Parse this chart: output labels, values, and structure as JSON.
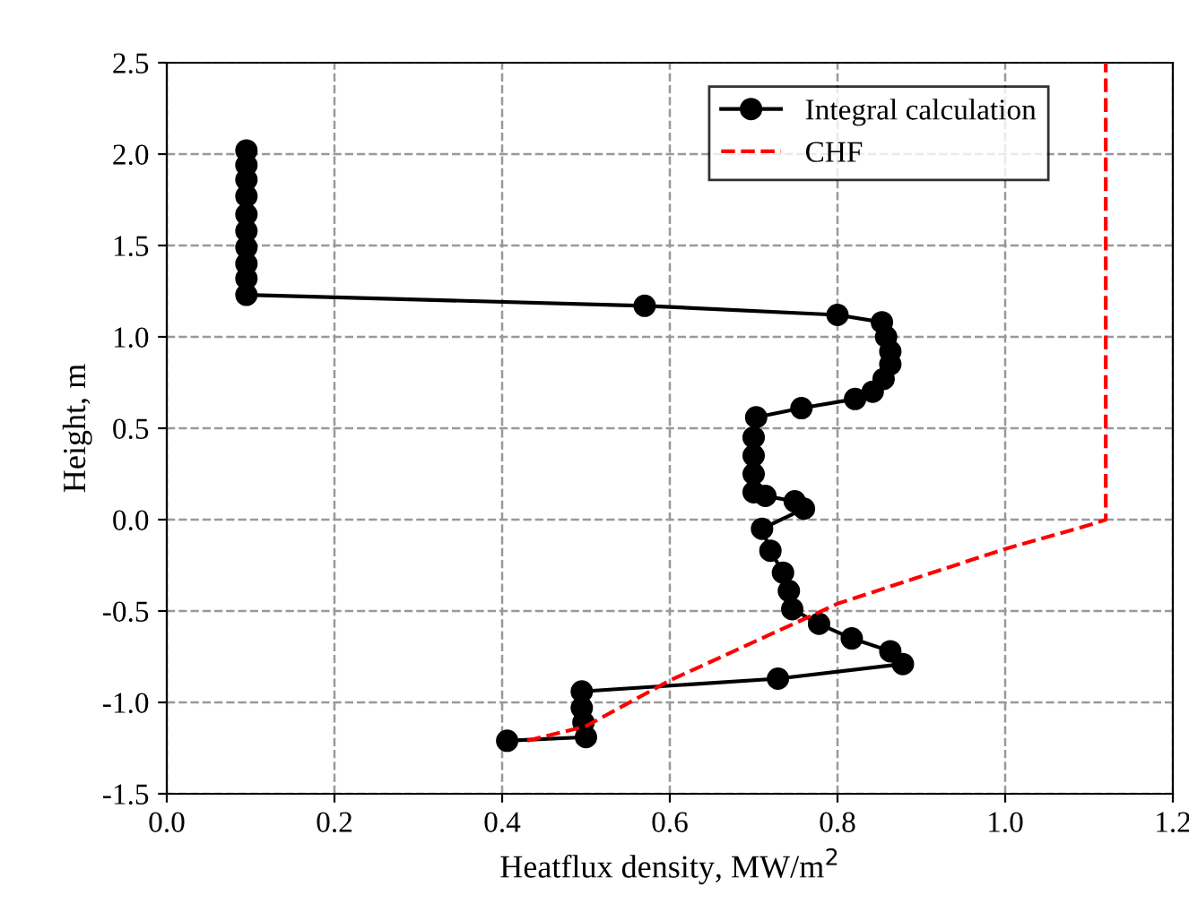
{
  "chart_data": {
    "type": "line",
    "xlabel": "Heatflux density, MW/m$^{2}$",
    "ylabel": "Height, m",
    "xlim": [
      0.0,
      1.2
    ],
    "ylim": [
      -1.5,
      2.5
    ],
    "xticks": [
      {
        "value": 0.0,
        "label": "0.0"
      },
      {
        "value": 0.2,
        "label": "0.2"
      },
      {
        "value": 0.4,
        "label": "0.4"
      },
      {
        "value": 0.6,
        "label": "0.6"
      },
      {
        "value": 0.8,
        "label": "0.8"
      },
      {
        "value": 1.0,
        "label": "1.0"
      },
      {
        "value": 1.2,
        "label": "1.2"
      }
    ],
    "yticks": [
      {
        "value": -1.5,
        "label": "-1.5"
      },
      {
        "value": -1.0,
        "label": "-1.0"
      },
      {
        "value": -0.5,
        "label": "-0.5"
      },
      {
        "value": 0.0,
        "label": "0.0"
      },
      {
        "value": 0.5,
        "label": "0.5"
      },
      {
        "value": 1.0,
        "label": "1.0"
      },
      {
        "value": 1.5,
        "label": "1.5"
      },
      {
        "value": 2.0,
        "label": "2.0"
      },
      {
        "value": 2.5,
        "label": "2.5"
      }
    ],
    "grid": true,
    "legend": "top right",
    "series": [
      {
        "name": "Integral calculation",
        "color": "#000000",
        "marker": "circle",
        "line_style": "solid",
        "x": [
          0.095,
          0.095,
          0.095,
          0.095,
          0.095,
          0.095,
          0.095,
          0.095,
          0.095,
          0.095,
          0.57,
          0.8,
          0.853,
          0.858,
          0.863,
          0.863,
          0.855,
          0.842,
          0.821,
          0.757,
          0.703,
          0.7,
          0.7,
          0.7,
          0.7,
          0.714,
          0.749,
          0.76,
          0.71,
          0.72,
          0.735,
          0.742,
          0.746,
          0.778,
          0.817,
          0.863,
          0.878,
          0.729,
          0.495,
          0.495,
          0.497,
          0.5,
          0.406
        ],
        "values": [
          2.02,
          1.94,
          1.86,
          1.77,
          1.67,
          1.58,
          1.49,
          1.4,
          1.32,
          1.23,
          1.17,
          1.12,
          1.08,
          1.0,
          0.92,
          0.85,
          0.77,
          0.7,
          0.66,
          0.61,
          0.56,
          0.45,
          0.35,
          0.25,
          0.15,
          0.13,
          0.1,
          0.06,
          -0.05,
          -0.17,
          -0.29,
          -0.39,
          -0.49,
          -0.57,
          -0.65,
          -0.72,
          -0.79,
          -0.87,
          -0.94,
          -1.03,
          -1.11,
          -1.19,
          -1.21
        ]
      },
      {
        "name": "CHF",
        "color": "#ff0000",
        "marker": "none",
        "line_style": "dashed",
        "x": [
          0.43,
          0.5,
          0.6,
          0.8,
          1.0,
          1.1,
          1.12,
          1.12
        ],
        "values": [
          -1.21,
          -1.13,
          -0.88,
          -0.46,
          -0.16,
          -0.03,
          0.0,
          2.5
        ]
      }
    ]
  }
}
